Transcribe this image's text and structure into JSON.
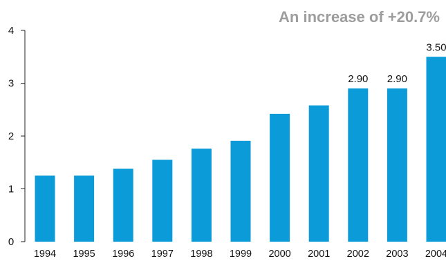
{
  "chart_data": {
    "type": "bar",
    "title": "An increase of +20.7%",
    "categories": [
      "1994",
      "1995",
      "1996",
      "1997",
      "1998",
      "1999",
      "2000",
      "2001",
      "2002",
      "2003",
      "2004"
    ],
    "values": [
      1.25,
      1.25,
      1.38,
      1.55,
      1.76,
      1.91,
      2.42,
      2.58,
      2.9,
      2.9,
      3.5
    ],
    "data_labels": [
      "",
      "",
      "",
      "",
      "",
      "",
      "",
      "",
      "2.90",
      "2.90",
      "3.50"
    ],
    "xlabel": "",
    "ylabel": "",
    "ylim": [
      0,
      4
    ],
    "yticks": [
      0,
      1,
      2,
      3,
      4
    ],
    "grid": false,
    "bar_color": "#0b9bd8",
    "title_color": "#9d9d9d"
  }
}
